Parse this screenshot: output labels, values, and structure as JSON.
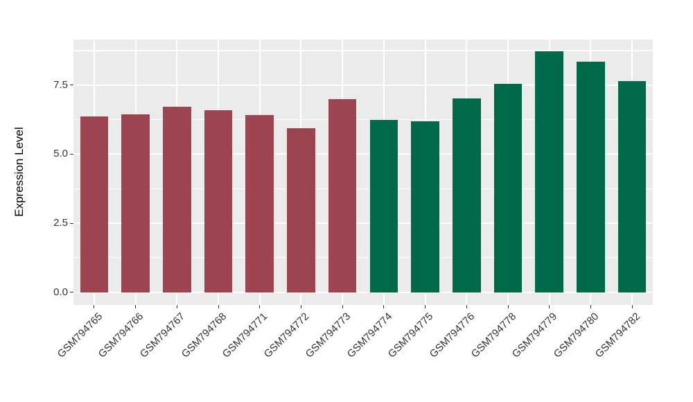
{
  "chart_data": {
    "type": "bar",
    "title": "",
    "xlabel": "",
    "ylabel": "Expression Level",
    "categories": [
      "GSM794765",
      "GSM794766",
      "GSM794767",
      "GSM794768",
      "GSM794771",
      "GSM794772",
      "GSM794773",
      "GSM794774",
      "GSM794775",
      "GSM794776",
      "GSM794778",
      "GSM794779",
      "GSM794780",
      "GSM794782"
    ],
    "values": [
      6.37,
      6.43,
      6.71,
      6.59,
      6.42,
      5.93,
      7.0,
      6.25,
      6.19,
      7.02,
      7.55,
      8.73,
      8.34,
      7.65
    ],
    "bar_colors": [
      "#9C4450",
      "#9C4450",
      "#9C4450",
      "#9C4450",
      "#9C4450",
      "#9C4450",
      "#9C4450",
      "#00694A",
      "#00694A",
      "#00694A",
      "#00694A",
      "#00694A",
      "#00694A",
      "#00694A"
    ],
    "group_colors": {
      "group1": "#9C4450",
      "group2": "#00694A"
    },
    "y_tick_labels": [
      "0.0",
      "2.5",
      "5.0",
      "7.5"
    ],
    "y_tick_values": [
      0,
      2.5,
      5,
      7.5
    ],
    "y_minor_values": [
      1.25,
      3.75,
      6.25,
      8.75
    ],
    "ylim": [
      -0.46,
      9.15
    ],
    "grid": true,
    "legend": "none",
    "panel_background": "#EBEBEB",
    "grid_color": "#FFFFFF",
    "axis_text_color": "#333333",
    "bar_width_fraction": 0.68
  }
}
